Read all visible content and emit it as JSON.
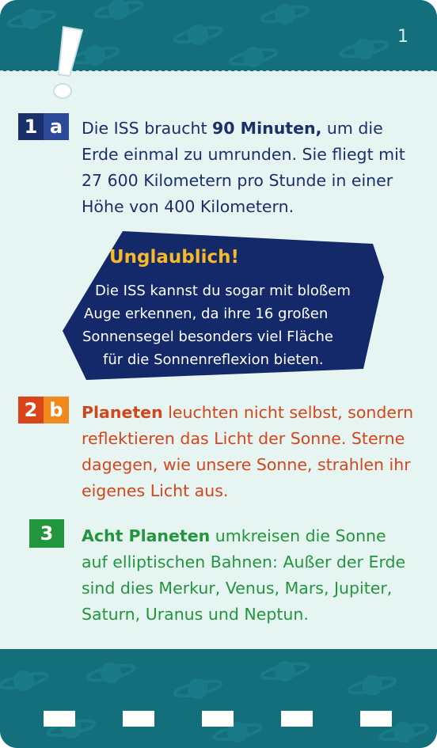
{
  "page_number": "1",
  "sections": [
    {
      "badge": [
        "1",
        "a"
      ],
      "text_bold": "90 Minuten,",
      "text_before": "Die ISS braucht ",
      "text_after": " um die Erde einmal zu umrunden. Sie fliegt mit 27 600 Kilometern pro Stunde in einer Höhe von 400 Kilometern."
    },
    {
      "badge": [
        "2",
        "b"
      ],
      "text_bold": "Planeten",
      "text_after": " leuchten nicht selbst, sondern reflektieren das Licht der Sonne. Sterne dagegen, wie unsere Sonne, strahlen ihr eigenes Licht aus."
    },
    {
      "badge": [
        "3"
      ],
      "text_bold": "Acht Planeten",
      "text_after": " umkreisen die Sonne auf elliptischen Bahnen: Außer der Erde sind dies Merkur, Venus, Mars, Jupiter, Saturn, Uranus und Neptun."
    }
  ],
  "info_box": {
    "title": "Unglaublich!",
    "lines": [
      "Die ISS kannst du sogar mit bloßem",
      "Auge erkennen, da ihre 16 großen",
      "Sonnensegel besonders viel Fläche",
      "für die Sonnenreflexion bieten."
    ]
  },
  "colors": {
    "frame": "#136f7c",
    "content_bg": "#e6f4f2",
    "section_1": "#1b2f6b",
    "section_2": "#d2461c",
    "section_3": "#22963c",
    "info_title": "#f5b92a"
  },
  "icons": [
    "exclamation-icon",
    "planet-pattern"
  ]
}
